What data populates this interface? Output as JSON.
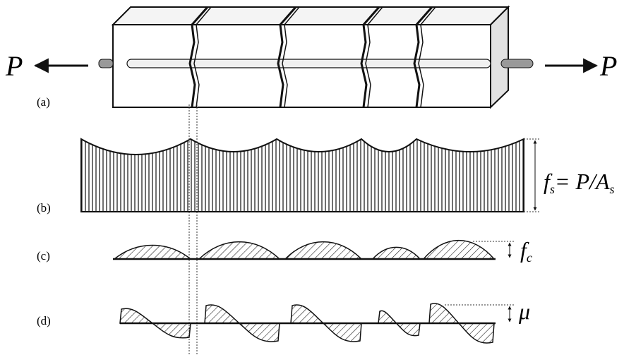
{
  "labels": {
    "load_left": "P",
    "load_right": "P",
    "panels": [
      "(a)",
      "(b)",
      "(c)",
      "(d)"
    ],
    "steel_stress": {
      "symbol": "f",
      "subscript": "s",
      "expression": "= P/A",
      "expression_subscript": "s"
    },
    "concrete_stress": {
      "symbol": "f",
      "subscript": "c"
    },
    "bond_stress": "μ"
  }
}
